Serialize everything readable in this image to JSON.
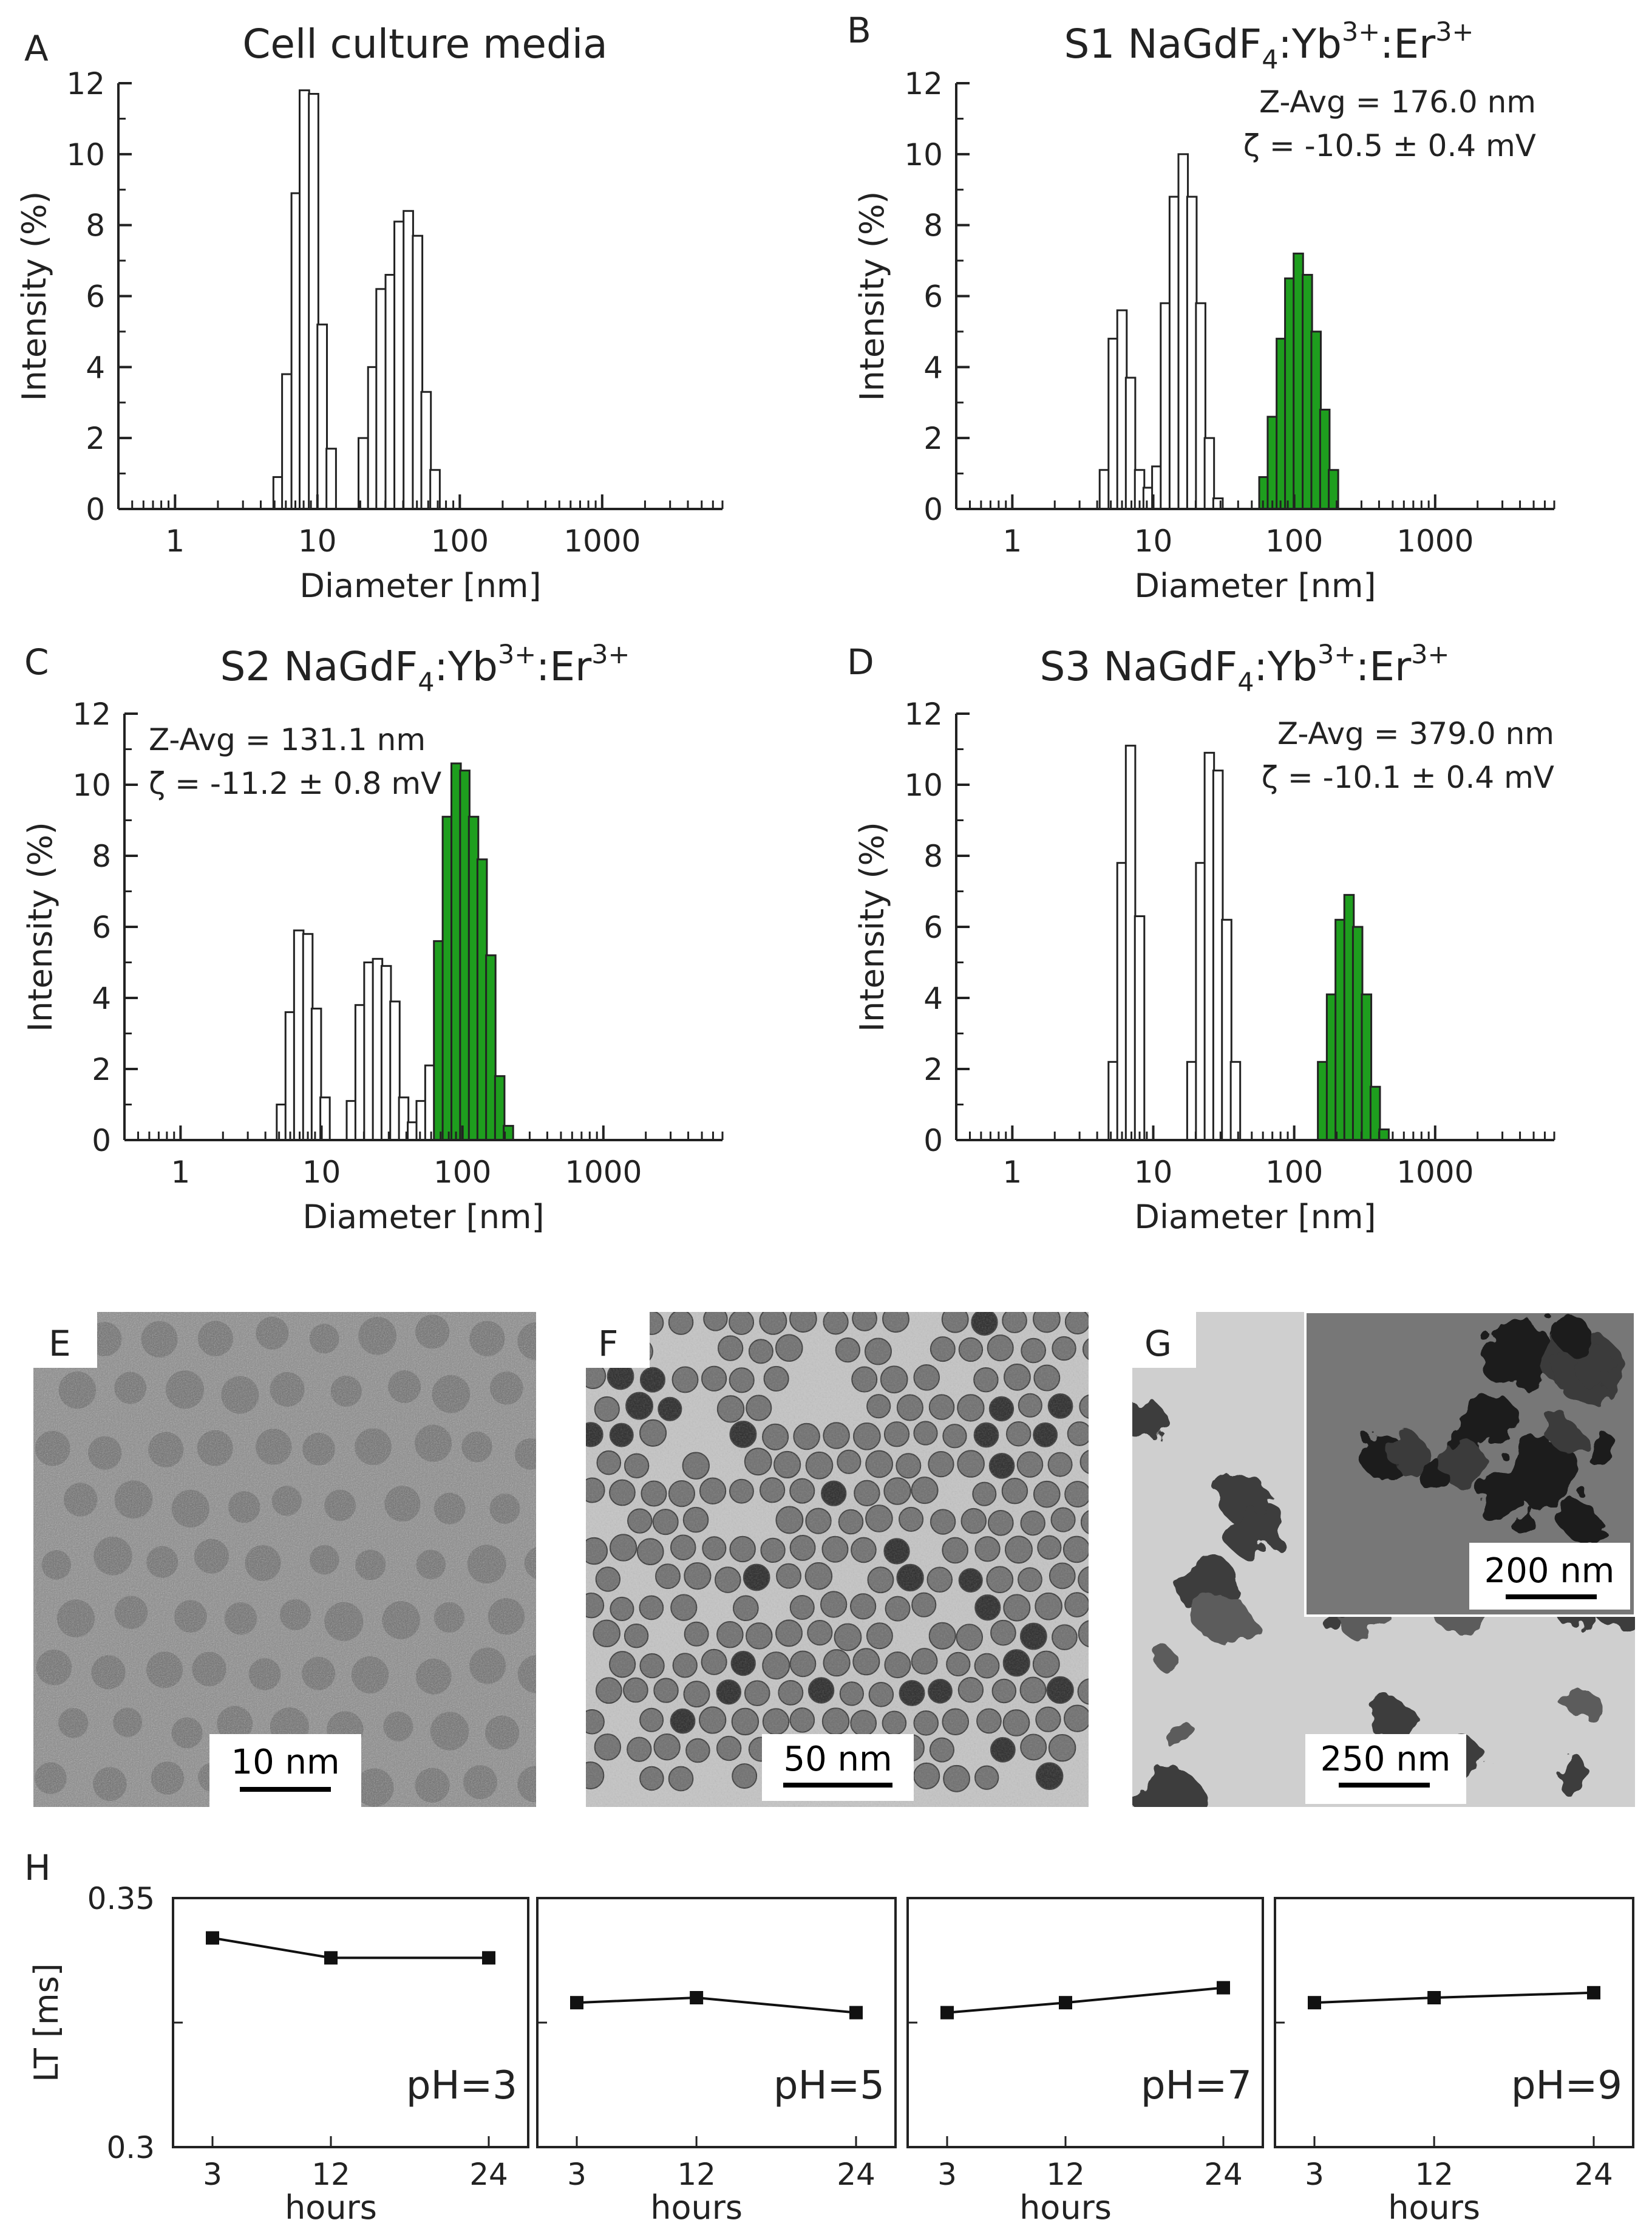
{
  "chart_data": [
    {
      "panel": "A",
      "type": "bar",
      "title": "Cell culture media",
      "xlabel": "Diameter [nm]",
      "ylabel": "Intensity (%)",
      "xscale": "log",
      "xlim": [
        0.4,
        7000
      ],
      "ylim": [
        0,
        12
      ],
      "xticks": [
        "1",
        "10",
        "100",
        "1000"
      ],
      "yticks": [
        "0",
        "2",
        "4",
        "6",
        "8",
        "10",
        "12"
      ],
      "annotations": [],
      "series": [
        {
          "highlight": false,
          "x": [
            5.3,
            6.1,
            7.1,
            8.1,
            9.4,
            10.8,
            12.5
          ],
          "values": [
            0.9,
            3.8,
            8.9,
            11.8,
            11.7,
            5.2,
            1.7
          ]
        },
        {
          "highlight": false,
          "x": [
            21,
            24.5,
            28,
            32.5,
            37.5,
            43.5,
            50.5,
            58,
            67
          ],
          "values": [
            2.0,
            4.0,
            6.2,
            6.6,
            8.1,
            8.4,
            7.7,
            3.3,
            1.1
          ]
        }
      ]
    },
    {
      "panel": "B",
      "type": "bar",
      "title": "S1 NaGdF",
      "title_sub": "4",
      "title_rest": ":Yb",
      "title_sup1": "3+",
      "title_rest2": ":Er",
      "title_sup2": "3+",
      "xlabel": "Diameter [nm]",
      "ylabel": "Intensity (%)",
      "xscale": "log",
      "xlim": [
        0.4,
        7000
      ],
      "ylim": [
        0,
        12
      ],
      "xticks": [
        "1",
        "10",
        "100",
        "1000"
      ],
      "yticks": [
        "0",
        "2",
        "4",
        "6",
        "8",
        "10",
        "12"
      ],
      "annotations": [
        "Z-Avg = 176.0 nm",
        "ζ = -10.5 ± 0.4 mV"
      ],
      "series": [
        {
          "highlight": false,
          "x": [
            4.5,
            5.2,
            6.0,
            6.9,
            8.0,
            9.2,
            10.6,
            12.2,
            14.1,
            16.3,
            18.8,
            21.7,
            25.0,
            28.8
          ],
          "values": [
            1.1,
            4.8,
            5.6,
            3.7,
            1.1,
            0.6,
            1.2,
            5.8,
            8.8,
            10.0,
            8.8,
            5.8,
            2.0,
            0.3
          ]
        },
        {
          "highlight": true,
          "x": [
            61,
            70,
            81,
            93,
            107,
            124,
            143,
            165,
            190
          ],
          "values": [
            0.9,
            2.6,
            4.8,
            6.5,
            7.2,
            6.6,
            5.0,
            2.8,
            1.1
          ]
        }
      ]
    },
    {
      "panel": "C",
      "type": "bar",
      "title": "S2 NaGdF",
      "title_sub": "4",
      "title_rest": ":Yb",
      "title_sup1": "3+",
      "title_rest2": ":Er",
      "title_sup2": "3+",
      "xlabel": "Diameter [nm]",
      "ylabel": "Intensity (%)",
      "xscale": "log",
      "xlim": [
        0.4,
        7000
      ],
      "ylim": [
        0,
        12
      ],
      "xticks": [
        "1",
        "10",
        "100",
        "1000"
      ],
      "yticks": [
        "0",
        "2",
        "4",
        "6",
        "8",
        "10",
        "12"
      ],
      "annotations": [
        "Z-Avg = 131.1 nm",
        "ζ = -11.2 ± 0.8 mV"
      ],
      "series": [
        {
          "highlight": false,
          "x": [
            5.2,
            6.0,
            6.9,
            8.0,
            9.2,
            10.6,
            16.3,
            18.8,
            21.7,
            25.0,
            28.8,
            33.2,
            38.3,
            44.2,
            51.0,
            58.8
          ],
          "values": [
            1.0,
            3.6,
            5.9,
            5.8,
            3.7,
            1.2,
            1.1,
            3.8,
            5.0,
            5.1,
            4.9,
            3.9,
            1.2,
            0.5,
            1.1,
            2.1
          ]
        },
        {
          "highlight": true,
          "x": [
            67.8,
            78.2,
            90.2,
            104,
            120,
            138,
            159,
            184,
            212
          ],
          "values": [
            5.6,
            9.1,
            10.6,
            10.4,
            9.1,
            7.9,
            5.2,
            1.8,
            0.4
          ]
        }
      ]
    },
    {
      "panel": "D",
      "type": "bar",
      "title": "S3 NaGdF",
      "title_sub": "4",
      "title_rest": ":Yb",
      "title_sup1": "3+",
      "title_rest2": ":Er",
      "title_sup2": "3+",
      "xlabel": "Diameter [nm]",
      "ylabel": "Intensity (%)",
      "xscale": "log",
      "xlim": [
        0.4,
        7000
      ],
      "ylim": [
        0,
        12
      ],
      "xticks": [
        "1",
        "10",
        "100",
        "1000"
      ],
      "yticks": [
        "0",
        "2",
        "4",
        "6",
        "8",
        "10",
        "12"
      ],
      "annotations": [
        "Z-Avg = 379.0 nm",
        "ζ = -10.1 ± 0.4 mV"
      ],
      "series": [
        {
          "highlight": false,
          "x": [
            5.2,
            6.0,
            6.9,
            8.0,
            18.8,
            21.7,
            25.0,
            28.8,
            33.2,
            38.3
          ],
          "values": [
            2.2,
            7.8,
            11.1,
            6.3,
            2.2,
            7.8,
            10.9,
            10.4,
            6.2,
            2.2
          ]
        },
        {
          "highlight": true,
          "x": [
            159,
            184,
            212,
            245,
            282,
            326,
            376,
            434
          ],
          "values": [
            2.2,
            4.1,
            6.2,
            6.9,
            6.0,
            4.1,
            1.5,
            0.3
          ]
        }
      ]
    },
    {
      "panel": "H",
      "type": "line",
      "ylabel": "LT [ms]",
      "xlabel": "hours",
      "ylim": [
        0.3,
        0.35
      ],
      "yticks": [
        "0.35",
        "0.3"
      ],
      "xticks": [
        "3",
        "12",
        "24"
      ],
      "x": [
        3,
        12,
        24
      ],
      "subplots": [
        {
          "label": "pH=3",
          "values": [
            0.342,
            0.338,
            0.338
          ]
        },
        {
          "label": "pH=5",
          "values": [
            0.329,
            0.33,
            0.327
          ]
        },
        {
          "label": "pH=7",
          "values": [
            0.327,
            0.329,
            0.332
          ]
        },
        {
          "label": "pH=9",
          "values": [
            0.329,
            0.33,
            0.331
          ]
        }
      ]
    }
  ],
  "micrographs": [
    {
      "label": "E",
      "scale_bar": "10 nm"
    },
    {
      "label": "F",
      "scale_bar": "50 nm"
    },
    {
      "label": "G",
      "scale_bar": "250 nm",
      "inset_scale_bar": "200 nm"
    }
  ],
  "colors": {
    "bar_open": "#ffffff",
    "bar_highlight": "#1e9e1e",
    "line": "#111111"
  }
}
